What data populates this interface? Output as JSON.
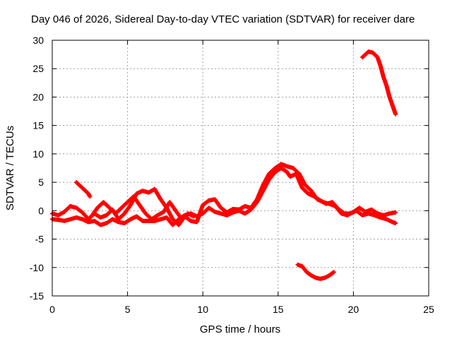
{
  "chart_data": {
    "type": "scatter",
    "title": "Day 046 of 2026, Sidereal Day-to-day VTEC variation (SDTVAR) for receiver dare",
    "xlabel": "GPS time / hours",
    "ylabel": "SDTVAR / TECUs",
    "xlim": [
      0,
      25
    ],
    "ylim": [
      -15,
      30
    ],
    "xticks": [
      0,
      5,
      10,
      15,
      20,
      25
    ],
    "yticks": [
      -15,
      -10,
      -5,
      0,
      5,
      10,
      15,
      20,
      25,
      30
    ],
    "xtick_labels": [
      "0",
      "5",
      "10",
      "15",
      "20",
      "25"
    ],
    "ytick_labels": [
      "-15",
      "-10",
      "-5",
      "0",
      "5",
      "10",
      "15",
      "20",
      "25",
      "30"
    ],
    "grid": true,
    "marker": "+",
    "color": "#ff0000",
    "series": [
      {
        "name": "track-a",
        "points": [
          [
            0,
            -0.5
          ],
          [
            0.4,
            -0.8
          ],
          [
            0.8,
            -0.2
          ],
          [
            1.2,
            0.8
          ],
          [
            1.6,
            0.5
          ],
          [
            2.0,
            -0.3
          ],
          [
            2.4,
            -1.5
          ],
          [
            2.8,
            -0.5
          ],
          [
            3.2,
            -1.2
          ],
          [
            3.6,
            -0.8
          ],
          [
            4.0,
            0.2
          ],
          [
            4.4,
            -1.5
          ],
          [
            4.8,
            -0.5
          ],
          [
            5.2,
            1.0
          ],
          [
            5.6,
            3.0
          ],
          [
            6.0,
            3.5
          ],
          [
            6.4,
            3.2
          ],
          [
            6.8,
            3.8
          ],
          [
            7.2,
            2.0
          ],
          [
            7.6,
            0.5
          ],
          [
            8.0,
            -1.5
          ],
          [
            8.4,
            -2.5
          ],
          [
            8.8,
            -1.0
          ],
          [
            9.2,
            -1.8
          ],
          [
            9.6,
            -2.0
          ],
          [
            10.0,
            1.0
          ],
          [
            10.4,
            1.8
          ],
          [
            10.8,
            2.0
          ],
          [
            11.2,
            0.5
          ],
          [
            11.6,
            -0.3
          ],
          [
            12.0,
            0.3
          ],
          [
            12.4,
            0.2
          ],
          [
            12.8,
            0.8
          ],
          [
            13.2,
            0.5
          ],
          [
            13.6,
            2.0
          ],
          [
            14.0,
            4.5
          ],
          [
            14.4,
            6.5
          ],
          [
            14.8,
            7.5
          ],
          [
            15.2,
            8.2
          ],
          [
            15.6,
            7.8
          ],
          [
            16.0,
            7.5
          ],
          [
            16.4,
            6.5
          ],
          [
            16.8,
            4.5
          ],
          [
            17.2,
            3.5
          ],
          [
            17.6,
            2.0
          ],
          [
            18.0,
            1.5
          ],
          [
            18.4,
            1.2
          ],
          [
            18.8,
            0.8
          ],
          [
            19.2,
            -0.5
          ],
          [
            19.6,
            -0.8
          ],
          [
            20.0,
            -0.2
          ],
          [
            20.4,
            0.5
          ],
          [
            20.8,
            -0.2
          ],
          [
            21.2,
            0.2
          ],
          [
            21.6,
            -0.5
          ],
          [
            22.0,
            -0.8
          ],
          [
            22.4,
            -0.5
          ],
          [
            22.8,
            -0.3
          ]
        ]
      },
      {
        "name": "track-b",
        "points": [
          [
            0,
            -1.5
          ],
          [
            0.4,
            -1.6
          ],
          [
            0.8,
            -1.8
          ],
          [
            1.2,
            -1.5
          ],
          [
            1.6,
            -1.2
          ],
          [
            2.0,
            -1.5
          ],
          [
            2.4,
            -2.0
          ],
          [
            2.8,
            -1.8
          ],
          [
            3.2,
            -2.5
          ],
          [
            3.6,
            -2.2
          ],
          [
            4.0,
            -1.5
          ],
          [
            4.4,
            -2.0
          ],
          [
            4.8,
            -2.2
          ],
          [
            5.2,
            -1.5
          ],
          [
            5.6,
            -1.0
          ],
          [
            6.0,
            -1.8
          ],
          [
            6.4,
            -1.8
          ],
          [
            6.8,
            -1.8
          ],
          [
            7.2,
            -1.5
          ],
          [
            7.6,
            -1.2
          ],
          [
            8.0,
            -2.5
          ],
          [
            8.4,
            -1.5
          ],
          [
            8.8,
            -0.8
          ],
          [
            9.2,
            -0.5
          ],
          [
            9.6,
            -1.0
          ],
          [
            10.0,
            -0.5
          ],
          [
            10.4,
            0.5
          ],
          [
            10.8,
            -0.2
          ],
          [
            11.2,
            -0.5
          ],
          [
            11.6,
            -0.8
          ],
          [
            12.0,
            -0.3
          ],
          [
            12.4,
            0.0
          ],
          [
            12.8,
            -0.5
          ],
          [
            13.2,
            0.2
          ],
          [
            13.6,
            1.5
          ],
          [
            14.0,
            3.5
          ],
          [
            14.4,
            5.5
          ],
          [
            14.8,
            6.8
          ],
          [
            15.2,
            7.5
          ],
          [
            15.6,
            6.8
          ],
          [
            15.8,
            6.0
          ],
          [
            16.2,
            6.5
          ],
          [
            16.6,
            4.0
          ],
          [
            17.0,
            3.0
          ],
          [
            17.4,
            2.5
          ],
          [
            17.8,
            1.8
          ],
          [
            18.2,
            1.2
          ],
          [
            18.6,
            1.5
          ],
          [
            19.0,
            0.3
          ],
          [
            19.4,
            -0.5
          ],
          [
            19.8,
            -0.5
          ],
          [
            20.2,
            0.0
          ],
          [
            20.6,
            -0.8
          ],
          [
            21.0,
            -0.5
          ],
          [
            21.4,
            -0.8
          ],
          [
            21.8,
            -1.2
          ],
          [
            22.2,
            -1.5
          ],
          [
            22.6,
            -2.0
          ],
          [
            22.8,
            -2.2
          ]
        ]
      },
      {
        "name": "track-c",
        "points": [
          [
            1.6,
            5.0
          ],
          [
            1.8,
            4.5
          ],
          [
            2.0,
            4.0
          ],
          [
            2.2,
            3.5
          ],
          [
            2.4,
            3.0
          ],
          [
            2.5,
            2.5
          ]
        ]
      },
      {
        "name": "track-d",
        "points": [
          [
            2.6,
            -1.0
          ],
          [
            3.0,
            0.5
          ],
          [
            3.4,
            1.5
          ],
          [
            3.8,
            0.5
          ],
          [
            4.2,
            -0.5
          ],
          [
            4.6,
            0.5
          ],
          [
            5.0,
            1.5
          ],
          [
            5.4,
            2.5
          ],
          [
            5.8,
            1.0
          ],
          [
            6.2,
            -0.5
          ],
          [
            6.6,
            -1.5
          ],
          [
            7.0,
            -0.8
          ],
          [
            7.4,
            -0.2
          ],
          [
            7.8,
            1.5
          ],
          [
            8.2,
            0.0
          ],
          [
            8.6,
            -1.5
          ],
          [
            9.0,
            -0.5
          ],
          [
            9.4,
            -1.0
          ]
        ]
      },
      {
        "name": "track-e",
        "points": [
          [
            16.3,
            -9.5
          ],
          [
            16.6,
            -9.8
          ],
          [
            16.9,
            -10.8
          ],
          [
            17.2,
            -11.4
          ],
          [
            17.5,
            -11.8
          ],
          [
            17.8,
            -12.0
          ],
          [
            18.1,
            -11.8
          ],
          [
            18.4,
            -11.4
          ],
          [
            18.7,
            -10.8
          ]
        ]
      },
      {
        "name": "track-f",
        "points": [
          [
            20.6,
            27.0
          ],
          [
            20.8,
            27.5
          ],
          [
            21.0,
            28.0
          ],
          [
            21.3,
            27.8
          ],
          [
            21.6,
            27.0
          ],
          [
            21.8,
            25.5
          ],
          [
            22.0,
            23.5
          ],
          [
            22.2,
            22.0
          ],
          [
            22.4,
            20.0
          ],
          [
            22.6,
            18.5
          ],
          [
            22.8,
            17.0
          ]
        ]
      }
    ]
  }
}
